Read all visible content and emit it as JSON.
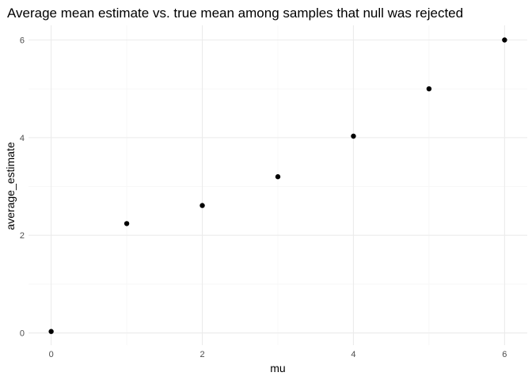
{
  "chart_data": {
    "type": "scatter",
    "title": "Average mean estimate vs. true mean among samples that null was rejected",
    "xlabel": "mu",
    "ylabel": "average_estimate",
    "xlim": [
      -0.3,
      6.3
    ],
    "ylim": [
      -0.25,
      6.3
    ],
    "x_ticks": [
      0,
      2,
      4,
      6
    ],
    "y_ticks": [
      0,
      2,
      4,
      6
    ],
    "x_minor": [
      1,
      3,
      5
    ],
    "y_minor": [
      1,
      3,
      5
    ],
    "grid": true,
    "points": [
      {
        "x": 0,
        "y": 0.03
      },
      {
        "x": 1,
        "y": 2.24
      },
      {
        "x": 2,
        "y": 2.61
      },
      {
        "x": 3,
        "y": 3.2
      },
      {
        "x": 4,
        "y": 4.03
      },
      {
        "x": 5,
        "y": 5.0
      },
      {
        "x": 6,
        "y": 6.0
      }
    ]
  }
}
